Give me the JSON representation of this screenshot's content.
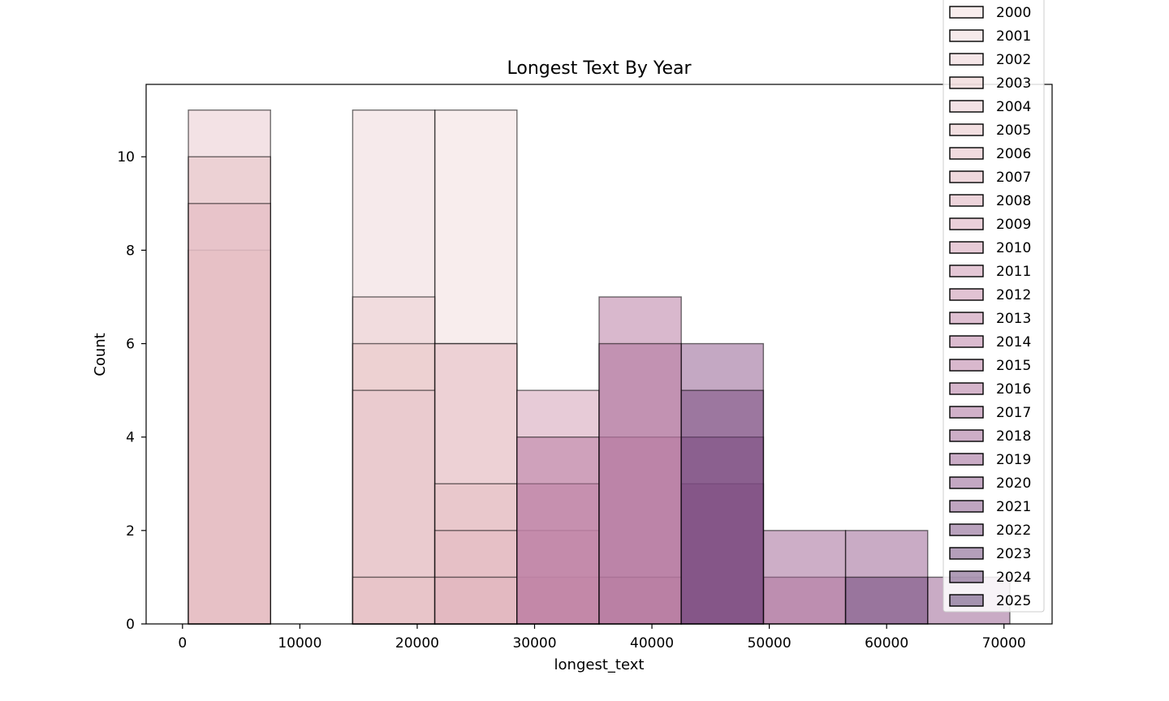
{
  "chart_data": {
    "type": "bar",
    "title": "Longest Text By Year",
    "xlabel": "longest_text",
    "ylabel": "Count",
    "xlim": [
      -3100,
      74100
    ],
    "ylim": [
      0,
      11.55
    ],
    "xticks": [
      0,
      10000,
      20000,
      30000,
      40000,
      50000,
      60000,
      70000
    ],
    "yticks": [
      0,
      2,
      4,
      6,
      8,
      10
    ],
    "grid": false,
    "legend_position": "upper-right",
    "legend_title": "",
    "bin_edges": [
      500,
      7500,
      14500,
      21500,
      28500,
      35500,
      42500,
      49500,
      56500,
      63500,
      70500
    ],
    "series": [
      {
        "name": "2000",
        "color": "#f1dbdb",
        "values": [
          0,
          0,
          0,
          11,
          0,
          0,
          0,
          0,
          0,
          0
        ]
      },
      {
        "name": "2001",
        "color": "#eed6d7",
        "values": [
          0,
          0,
          11,
          0,
          0,
          0,
          0,
          0,
          0,
          0
        ]
      },
      {
        "name": "2002",
        "color": "#ebced1",
        "values": [
          0,
          0,
          7,
          6,
          0,
          0,
          0,
          0,
          0,
          0
        ]
      },
      {
        "name": "2003",
        "color": "#e9c6c5",
        "values": [
          8,
          0,
          6,
          0,
          0,
          1,
          0,
          0,
          0,
          0
        ]
      },
      {
        "name": "2004",
        "color": "#e8c6cb",
        "values": [
          11,
          0,
          5,
          6,
          0,
          0,
          0,
          0,
          0,
          0
        ]
      },
      {
        "name": "2005",
        "color": "#e6bfc3",
        "values": [
          10,
          0,
          1,
          3,
          0,
          0,
          0,
          0,
          0,
          0
        ]
      },
      {
        "name": "2006",
        "color": "#e3b8c0",
        "values": [
          9,
          0,
          0,
          2,
          0,
          0,
          0,
          0,
          0,
          0
        ]
      },
      {
        "name": "2007",
        "color": "#e0b2bc",
        "values": [
          0,
          0,
          0,
          1,
          0,
          0,
          0,
          0,
          0,
          0
        ]
      },
      {
        "name": "2008",
        "color": "#dba9b7",
        "values": [
          0,
          0,
          0,
          0,
          1,
          0,
          0,
          0,
          0,
          0
        ]
      },
      {
        "name": "2009",
        "color": "#d5a1b4",
        "values": [
          0,
          0,
          0,
          0,
          2,
          0,
          0,
          0,
          0,
          0
        ]
      },
      {
        "name": "2010",
        "color": "#cf98b0",
        "values": [
          0,
          0,
          0,
          0,
          5,
          0,
          0,
          0,
          0,
          0
        ]
      },
      {
        "name": "2011",
        "color": "#c98fac",
        "values": [
          0,
          0,
          0,
          0,
          0,
          4,
          0,
          0,
          0,
          0
        ]
      },
      {
        "name": "2012",
        "color": "#c487a8",
        "values": [
          0,
          0,
          0,
          0,
          3,
          0,
          0,
          0,
          0,
          0
        ]
      },
      {
        "name": "2013",
        "color": "#be80a4",
        "values": [
          0,
          0,
          0,
          0,
          0,
          0,
          0,
          1,
          0,
          0
        ]
      },
      {
        "name": "2014",
        "color": "#b878a0",
        "values": [
          0,
          0,
          0,
          0,
          4,
          0,
          0,
          0,
          0,
          0
        ]
      },
      {
        "name": "2015",
        "color": "#b3719c",
        "values": [
          0,
          0,
          0,
          0,
          0,
          7,
          0,
          0,
          0,
          0
        ]
      },
      {
        "name": "2016",
        "color": "#ab6b98",
        "values": [
          0,
          0,
          0,
          0,
          0,
          6,
          0,
          0,
          0,
          0
        ]
      },
      {
        "name": "2017",
        "color": "#a46494",
        "values": [
          0,
          0,
          0,
          0,
          0,
          0,
          3,
          0,
          0,
          0
        ]
      },
      {
        "name": "2018",
        "color": "#9b5d8f",
        "values": [
          0,
          0,
          0,
          0,
          0,
          0,
          0,
          2,
          0,
          0
        ]
      },
      {
        "name": "2019",
        "color": "#93578b",
        "values": [
          0,
          0,
          0,
          0,
          0,
          0,
          0,
          0,
          2,
          1
        ]
      },
      {
        "name": "2020",
        "color": "#8a5187",
        "values": [
          0,
          0,
          0,
          0,
          0,
          0,
          6,
          0,
          0,
          0
        ]
      },
      {
        "name": "2021",
        "color": "#7f4b82",
        "values": [
          0,
          0,
          0,
          0,
          0,
          0,
          4,
          0,
          0,
          0
        ]
      },
      {
        "name": "2022",
        "color": "#74457c",
        "values": [
          0,
          0,
          0,
          0,
          0,
          0,
          5,
          0,
          0,
          0
        ]
      },
      {
        "name": "2023",
        "color": "#6a3f76",
        "values": [
          0,
          0,
          0,
          0,
          0,
          0,
          0,
          0,
          1,
          0
        ]
      },
      {
        "name": "2024",
        "color": "#5f3970",
        "values": [
          0,
          0,
          0,
          0,
          0,
          0,
          0,
          0,
          0,
          0
        ]
      },
      {
        "name": "2025",
        "color": "#54336a",
        "values": [
          0,
          0,
          0,
          0,
          0,
          0,
          0,
          0,
          0,
          0
        ]
      }
    ]
  }
}
